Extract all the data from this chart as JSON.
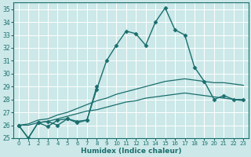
{
  "background_color": "#cce8e8",
  "grid_color": "#b8d8d8",
  "line_color": "#1a6e6e",
  "xlabel": "Humidex (Indice chaleur)",
  "xlim": [
    -0.5,
    23.5
  ],
  "ylim": [
    25,
    35.5
  ],
  "yticks": [
    25,
    26,
    27,
    28,
    29,
    30,
    31,
    32,
    33,
    34,
    35
  ],
  "xticks": [
    0,
    1,
    2,
    3,
    4,
    5,
    6,
    7,
    8,
    9,
    10,
    11,
    12,
    13,
    14,
    15,
    16,
    17,
    18,
    19,
    20,
    21,
    22,
    23
  ],
  "series": [
    {
      "x": [
        0,
        1,
        2,
        3,
        4,
        5,
        6,
        7,
        8,
        9,
        10,
        11,
        12,
        13,
        14,
        15,
        16,
        17,
        18,
        19,
        20,
        21,
        22,
        23
      ],
      "y": [
        26.0,
        25.0,
        26.2,
        25.9,
        26.4,
        26.5,
        26.3,
        26.4,
        28.8,
        31.0,
        32.2,
        33.3,
        33.1,
        32.2,
        34.0,
        35.1,
        33.4,
        33.0,
        30.5,
        29.4,
        28.0,
        28.3,
        28.0,
        28.0
      ],
      "marker": "D",
      "markersize": 2.5,
      "linewidth": 1.0
    },
    {
      "x": [
        0,
        1,
        2,
        3,
        4,
        5,
        6,
        7,
        8
      ],
      "y": [
        26.0,
        25.0,
        26.2,
        26.3,
        26.0,
        26.5,
        26.2,
        26.4,
        29.0
      ],
      "marker": "D",
      "markersize": 2.5,
      "linewidth": 1.0
    },
    {
      "x": [
        0,
        1,
        2,
        3,
        4,
        5,
        6,
        7,
        8,
        9,
        10,
        11,
        12,
        13,
        14,
        15,
        16,
        17,
        18,
        19,
        20,
        21,
        22,
        23
      ],
      "y": [
        26.0,
        26.1,
        26.4,
        26.5,
        26.8,
        27.0,
        27.3,
        27.6,
        27.9,
        28.1,
        28.4,
        28.6,
        28.8,
        29.0,
        29.2,
        29.4,
        29.5,
        29.6,
        29.5,
        29.4,
        29.3,
        29.3,
        29.2,
        29.1
      ],
      "marker": null,
      "markersize": 0,
      "linewidth": 0.9
    },
    {
      "x": [
        0,
        1,
        2,
        3,
        4,
        5,
        6,
        7,
        8,
        9,
        10,
        11,
        12,
        13,
        14,
        15,
        16,
        17,
        18,
        19,
        20,
        21,
        22,
        23
      ],
      "y": [
        26.0,
        26.0,
        26.2,
        26.3,
        26.5,
        26.7,
        26.9,
        27.1,
        27.2,
        27.4,
        27.6,
        27.8,
        27.9,
        28.1,
        28.2,
        28.3,
        28.4,
        28.5,
        28.4,
        28.3,
        28.2,
        28.1,
        28.0,
        27.9
      ],
      "marker": null,
      "markersize": 0,
      "linewidth": 0.9
    }
  ]
}
